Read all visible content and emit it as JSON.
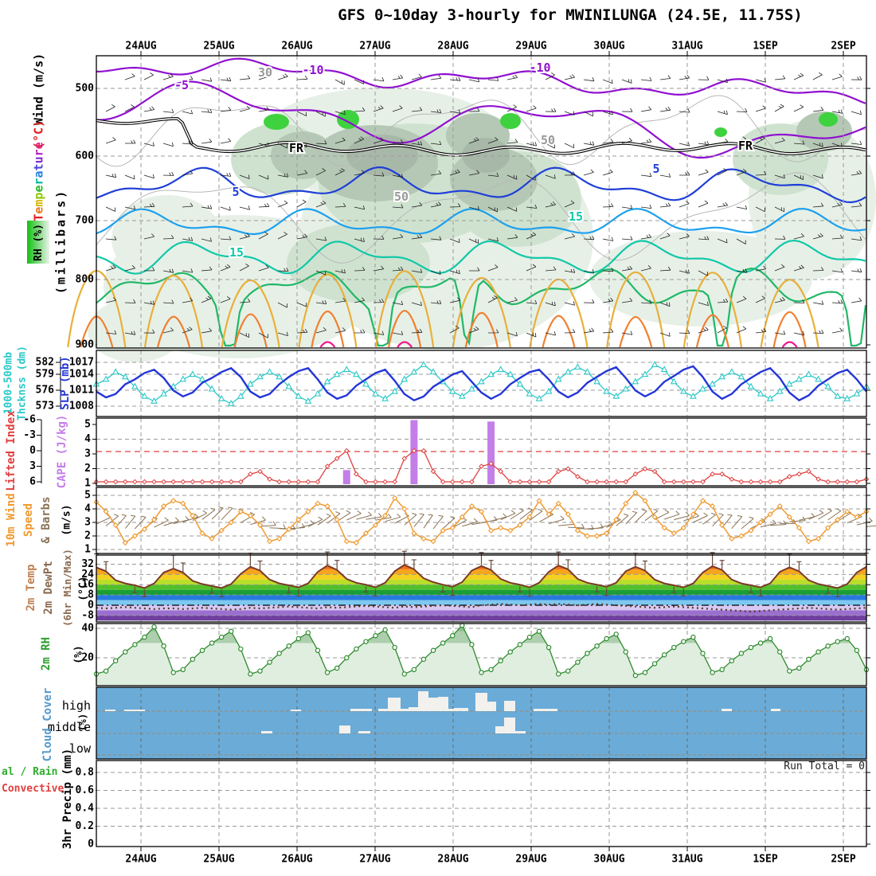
{
  "title": "GFS 0~10day 3-hourly for MWINILUNGA (24.5E, 11.75S)",
  "dates": [
    "24AUG",
    "25AUG",
    "26AUG",
    "27AUG",
    "28AUG",
    "29AUG",
    "30AUG",
    "31AUG",
    "1SEP",
    "2SEP"
  ],
  "left_labels": [
    {
      "id": "wind-ms",
      "text": "Wind (m/s)",
      "color": "#000000"
    },
    {
      "id": "degc",
      "text": "(°C)",
      "color": "#e02020"
    },
    {
      "id": "temperature",
      "text": "Temperature",
      "color": "rainbow"
    },
    {
      "id": "millibars",
      "text": "(millibars)",
      "color": "#000000"
    },
    {
      "id": "thk1",
      "text": "1000-500mb",
      "color": "#28c8c8"
    },
    {
      "id": "thk2",
      "text": "Thcknss (dm)",
      "color": "#28c8c8"
    },
    {
      "id": "slp",
      "text": "SLP (mb)",
      "color": "#2436d8"
    },
    {
      "id": "li",
      "text": "Lifted Index",
      "color": "#e04040"
    },
    {
      "id": "cape",
      "text": "CAPE (J/kg)",
      "color": "#c37ee8"
    },
    {
      "id": "w10a",
      "text": "10m Wind",
      "color": "#f09a30"
    },
    {
      "id": "w10b",
      "text": "Speed",
      "color": "#f09a30"
    },
    {
      "id": "w10c",
      "text": "& Barbs",
      "color": "#8a7355"
    },
    {
      "id": "w10d",
      "text": "(m/s)",
      "color": "#000000"
    },
    {
      "id": "t2a",
      "text": "2m Temp",
      "color": "#c08050"
    },
    {
      "id": "t2b",
      "text": "2m DewPt",
      "color": "#8a6a50"
    },
    {
      "id": "t2c",
      "text": "(6hr Min/Max)",
      "color": "#8a6a50"
    },
    {
      "id": "t2d",
      "text": "(°C)",
      "color": "#000000"
    },
    {
      "id": "rha",
      "text": "2m RH",
      "color": "#2e9e2e"
    },
    {
      "id": "rhb",
      "text": "(%)",
      "color": "#000000"
    },
    {
      "id": "cca",
      "text": "Cloud Cover",
      "color": "#5599cc"
    },
    {
      "id": "ccb",
      "text": "(%)",
      "color": "#000000"
    },
    {
      "id": "ppu",
      "text": "3hr Precip (mm)",
      "color": "#000000"
    }
  ],
  "rh_legend_text": "RH (%)",
  "rainbow_colors": [
    "#e02020",
    "#e87820",
    "#d8b400",
    "#8cc800",
    "#28b828",
    "#00b8a0",
    "#2880e0",
    "#5048d0",
    "#8828d0",
    "#c020c0",
    "#e02080"
  ],
  "panels": {
    "upper_air": {
      "yticks": [
        500,
        600,
        700,
        800,
        900
      ],
      "contour_labels": [
        {
          "text": "-10",
          "color": "#9010d0"
        },
        {
          "text": "-10",
          "color": "#9010d0"
        },
        {
          "text": "-5",
          "color": "#9010d0"
        },
        {
          "text": "5",
          "color": "#1f3fd8"
        },
        {
          "text": "5",
          "color": "#1f3fd8"
        },
        {
          "text": "15",
          "color": "#10c8a8"
        },
        {
          "text": "15",
          "color": "#10c8a8"
        },
        {
          "text": "FR",
          "color": "#000000"
        },
        {
          "text": "FR",
          "color": "#000000"
        },
        {
          "text": "30",
          "color": "#999999"
        },
        {
          "text": "50",
          "color": "#999999"
        },
        {
          "text": "50",
          "color": "#999999"
        }
      ]
    },
    "slp": {
      "yticks": [
        1017,
        1014,
        1011,
        1008
      ],
      "thickness_ticks": [
        582,
        579,
        576,
        573
      ]
    },
    "stability": {
      "li_ticks": [
        -6,
        -3,
        0,
        3,
        6
      ],
      "cape_ticks": [
        5,
        4,
        3,
        2,
        1
      ]
    },
    "wind10": {
      "yticks": [
        5,
        4,
        3,
        2,
        1
      ]
    },
    "temp2m": {
      "yticks": [
        32,
        24,
        16,
        8,
        0,
        -8
      ]
    },
    "rh2m": {
      "yticks": [
        40,
        20
      ]
    },
    "cloud": {
      "rows": [
        "high",
        "middle",
        "low"
      ]
    },
    "precip": {
      "yticks": [
        "0.8",
        "0.6",
        "0.4",
        "0.2",
        "0"
      ],
      "label_total": "al / Rain",
      "label_conv": "Convective",
      "run_total": "Run Total = 0"
    }
  },
  "chart_data": {
    "type": "meteogram",
    "model": "GFS",
    "station": "MWINILUNGA (24.5E, 11.75S)",
    "time_step_hours": 3,
    "n_samples": 81,
    "x_dates": [
      "24AUG",
      "25AUG",
      "26AUG",
      "27AUG",
      "28AUG",
      "29AUG",
      "30AUG",
      "31AUG",
      "1SEP",
      "2SEP"
    ],
    "upper_air": {
      "pressure_ticks_mb": [
        500,
        600,
        700,
        800,
        900
      ],
      "temp_contours_c": [
        -10,
        -5,
        0,
        5,
        10,
        15,
        20,
        25,
        30
      ],
      "freezing_line_label": "FR",
      "rh_shading_pct": [
        30,
        50,
        70,
        90
      ]
    },
    "slp_mb": [
      1011,
      1009.8,
      1010.5,
      1012.5,
      1013.5,
      1014.8,
      1015.5,
      1013.8,
      1011.2,
      1010,
      1010.8,
      1012.8,
      1013.8,
      1015,
      1015.8,
      1014,
      1011,
      1009.8,
      1010.5,
      1012.5,
      1014,
      1015.2,
      1015.8,
      1013.5,
      1010.8,
      1009.5,
      1010.2,
      1012.2,
      1013.5,
      1014.8,
      1015.5,
      1013.2,
      1010.5,
      1009.2,
      1010,
      1012,
      1013.2,
      1014.5,
      1015.2,
      1013,
      1010.8,
      1009.5,
      1010.5,
      1012.5,
      1013.8,
      1015,
      1015.5,
      1013.5,
      1011,
      1009.8,
      1010.8,
      1012.8,
      1014,
      1015.2,
      1016,
      1013.8,
      1011.2,
      1010,
      1011,
      1013,
      1014.2,
      1015.5,
      1016.2,
      1014,
      1011,
      1009.5,
      1010.5,
      1012.5,
      1013.8,
      1015,
      1015.8,
      1013.8,
      1010.8,
      1009.2,
      1010.2,
      1012.2,
      1013.5,
      1014.8,
      1015.5,
      1013.5,
      1011
    ],
    "thickness_1000_500_dm": [
      577.5,
      578.5,
      580,
      579,
      577,
      575,
      574,
      575.5,
      577,
      578.5,
      579.5,
      578.5,
      576.5,
      574.5,
      573.5,
      575,
      577.5,
      579,
      580,
      579,
      577,
      575,
      574,
      575.5,
      578,
      579.5,
      580.5,
      579.5,
      577.5,
      575.5,
      574.5,
      576,
      578.5,
      580,
      581.5,
      580,
      578,
      576,
      575,
      576.5,
      578,
      579.5,
      580.5,
      579.5,
      577.5,
      575.5,
      574.5,
      576,
      578.5,
      580,
      581,
      580,
      578,
      576,
      575,
      576.5,
      578,
      579.5,
      581.5,
      580.5,
      578,
      576,
      575,
      576.5,
      577.5,
      579,
      580,
      579,
      577,
      575.5,
      574.5,
      576,
      577.5,
      578.5,
      579.5,
      578.5,
      577,
      575,
      574.5,
      575.5,
      577
    ],
    "lifted_index": [
      6,
      6,
      6,
      6,
      6,
      6,
      6,
      6,
      6,
      6,
      6,
      6,
      6,
      6,
      6,
      6,
      4.5,
      4,
      5.5,
      6,
      6,
      6,
      6,
      6,
      3,
      1.5,
      0,
      4.5,
      6,
      6,
      6,
      6,
      1.5,
      0,
      0,
      4,
      6,
      6,
      6,
      6,
      3,
      2.5,
      4,
      6,
      6,
      6,
      6,
      6,
      4,
      3.5,
      5,
      6,
      6,
      6,
      6,
      6,
      4.5,
      3.5,
      4,
      6,
      6,
      6,
      6,
      6,
      4.5,
      4.5,
      5.5,
      6,
      6,
      6,
      6,
      6,
      5,
      4.5,
      4,
      5.5,
      6,
      6,
      6,
      6,
      5.5
    ],
    "cape_bars": [
      {
        "i": 26,
        "j_per_kg": 1.9
      },
      {
        "i": 33,
        "j_per_kg": 5.3
      },
      {
        "i": 41,
        "j_per_kg": 5.2
      }
    ],
    "wind10m_ms": [
      4.5,
      3.8,
      2.8,
      1.5,
      2,
      2.5,
      3.2,
      4.2,
      4.6,
      4.4,
      3.5,
      2.2,
      1.8,
      2.4,
      3,
      3.8,
      3.5,
      2.8,
      1.6,
      1.8,
      2.5,
      3.2,
      3.8,
      4.4,
      4.2,
      3.2,
      1.6,
      1.5,
      2.2,
      2.8,
      3.5,
      4.8,
      4,
      2.2,
      1.8,
      1.6,
      2.4,
      2.6,
      3.4,
      4.2,
      3.8,
      2.4,
      2.6,
      2.4,
      2.8,
      3.4,
      4.6,
      3.6,
      4.4,
      3.6,
      2.4,
      2,
      2,
      2.2,
      3.2,
      4.4,
      5.2,
      4.6,
      3.4,
      2.6,
      2.2,
      2.6,
      3.6,
      4.6,
      4.2,
      2.8,
      1.8,
      2,
      2.4,
      3,
      3.6,
      4.2,
      3.4,
      2.6,
      1.6,
      1.8,
      2.6,
      3.2,
      3.8,
      3.4,
      3.8
    ],
    "temp2m_c": [
      29.5,
      26.5,
      19.5,
      17,
      15.5,
      13.5,
      17,
      25.5,
      28.5,
      25.5,
      19,
      16.5,
      15,
      13.5,
      16.5,
      24.5,
      30,
      27,
      20,
      17,
      15.5,
      14,
      17,
      26,
      31,
      27.5,
      20.5,
      17.5,
      16,
      14,
      17.5,
      26.5,
      31.5,
      28,
      21,
      18,
      16,
      14.5,
      18,
      27,
      30.5,
      27.5,
      20.5,
      17.5,
      16,
      14,
      17.5,
      26,
      31,
      28,
      20.5,
      17.5,
      16,
      14.5,
      17.5,
      26.5,
      30,
      27,
      20,
      17,
      15.5,
      14,
      17,
      25.5,
      30.5,
      27.5,
      20,
      17,
      15.5,
      14,
      17,
      26,
      29.5,
      26.5,
      19.5,
      16.5,
      15,
      13.5,
      16.5,
      25.5,
      30
    ],
    "dewpt2m_c": [
      -2,
      -2.5,
      -2,
      -1.5,
      -2,
      -2.5,
      -3,
      -2.5,
      -2.5,
      -3,
      -2.5,
      -2,
      -2.5,
      -3,
      -3.5,
      -3,
      -2,
      -2.5,
      -2,
      -1.5,
      -1,
      -1.5,
      -2,
      -2.5,
      -1.5,
      -2,
      -1.5,
      -1,
      -0.5,
      -1,
      -1.5,
      -2,
      -1,
      -1.5,
      -1,
      -0.5,
      0,
      -0.5,
      -1,
      -1.5,
      0,
      0.5,
      1,
      0.5,
      0,
      0.5,
      1,
      0.5,
      1,
      0.5,
      0,
      0.5,
      1,
      0.5,
      0,
      -0.5,
      -1,
      -1.5,
      -2,
      -1.5,
      -1,
      -1.5,
      -2,
      -2.5,
      -3,
      -3.5,
      -4,
      -4.5,
      -5,
      -4.5,
      -4,
      -3.5,
      -3,
      -2.5,
      -2,
      -2.5,
      -3,
      -3.5,
      -3,
      -2.5,
      -2
    ],
    "rh2m_pct": [
      9,
      11,
      18,
      24,
      29,
      34,
      41,
      28,
      10,
      12,
      19,
      25,
      30,
      34,
      38,
      26,
      9,
      11,
      17,
      23,
      28,
      33,
      37,
      25,
      10,
      13,
      20,
      26,
      31,
      35,
      39,
      27,
      9,
      12,
      19,
      25,
      30,
      35,
      42,
      29,
      10,
      12,
      18,
      24,
      29,
      34,
      38,
      27,
      9,
      11,
      17,
      23,
      28,
      33,
      36,
      24,
      8,
      10,
      16,
      22,
      27,
      31,
      34,
      23,
      10,
      12,
      18,
      23,
      27,
      30,
      33,
      24,
      11,
      13,
      19,
      24,
      28,
      31,
      33,
      25,
      12
    ],
    "cloud_cover": {
      "rows": [
        "high",
        "middle",
        "low"
      ],
      "high_bars": [
        [
          11,
          13,
          2
        ],
        [
          35,
          26,
          2
        ],
        [
          244,
          13,
          2
        ],
        [
          319,
          27,
          3
        ],
        [
          354,
          95,
          3
        ],
        [
          366,
          16,
          17
        ],
        [
          392,
          12,
          5
        ],
        [
          404,
          13,
          25
        ],
        [
          417,
          12,
          17
        ],
        [
          429,
          13,
          18
        ],
        [
          449,
          18,
          4
        ],
        [
          476,
          15,
          23
        ],
        [
          491,
          11,
          12
        ],
        [
          512,
          14,
          13
        ],
        [
          549,
          30,
          3
        ],
        [
          785,
          13,
          3
        ],
        [
          847,
          12,
          3
        ]
      ],
      "middle_bars": [
        [
          207,
          14,
          3
        ],
        [
          305,
          14,
          10
        ],
        [
          329,
          15,
          3
        ],
        [
          501,
          38,
          3
        ],
        [
          501,
          11,
          9
        ],
        [
          512,
          14,
          20
        ]
      ],
      "low_bars": []
    },
    "precip_3hr_mm": {
      "run_total": 0,
      "all_values_zero": true
    }
  }
}
